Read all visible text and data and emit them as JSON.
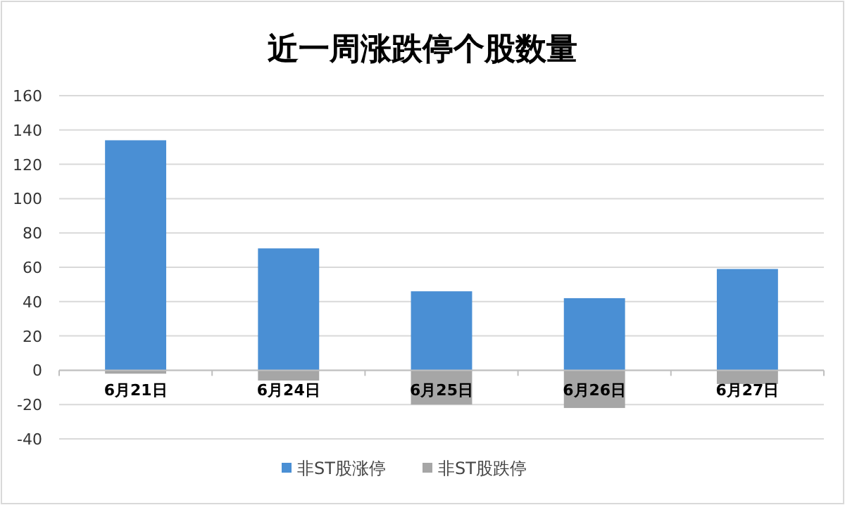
{
  "chart_data": {
    "type": "bar",
    "title": "近一周涨跌停个股数量",
    "categories": [
      "6月21日",
      "6月24日",
      "6月25日",
      "6月26日",
      "6月27日"
    ],
    "series": [
      {
        "name": "非ST股涨停",
        "color": "#4a8fd4",
        "values": [
          134,
          71,
          46,
          42,
          59
        ]
      },
      {
        "name": "非ST股跌停",
        "color": "#a6a6a6",
        "values": [
          -2,
          -6,
          -20,
          -22,
          -8
        ]
      }
    ],
    "stacked": true,
    "ylim": [
      -40,
      160
    ],
    "yticks": [
      -40,
      -20,
      0,
      20,
      40,
      60,
      80,
      100,
      120,
      140,
      160
    ],
    "grid": "y",
    "legend": "bottom"
  }
}
